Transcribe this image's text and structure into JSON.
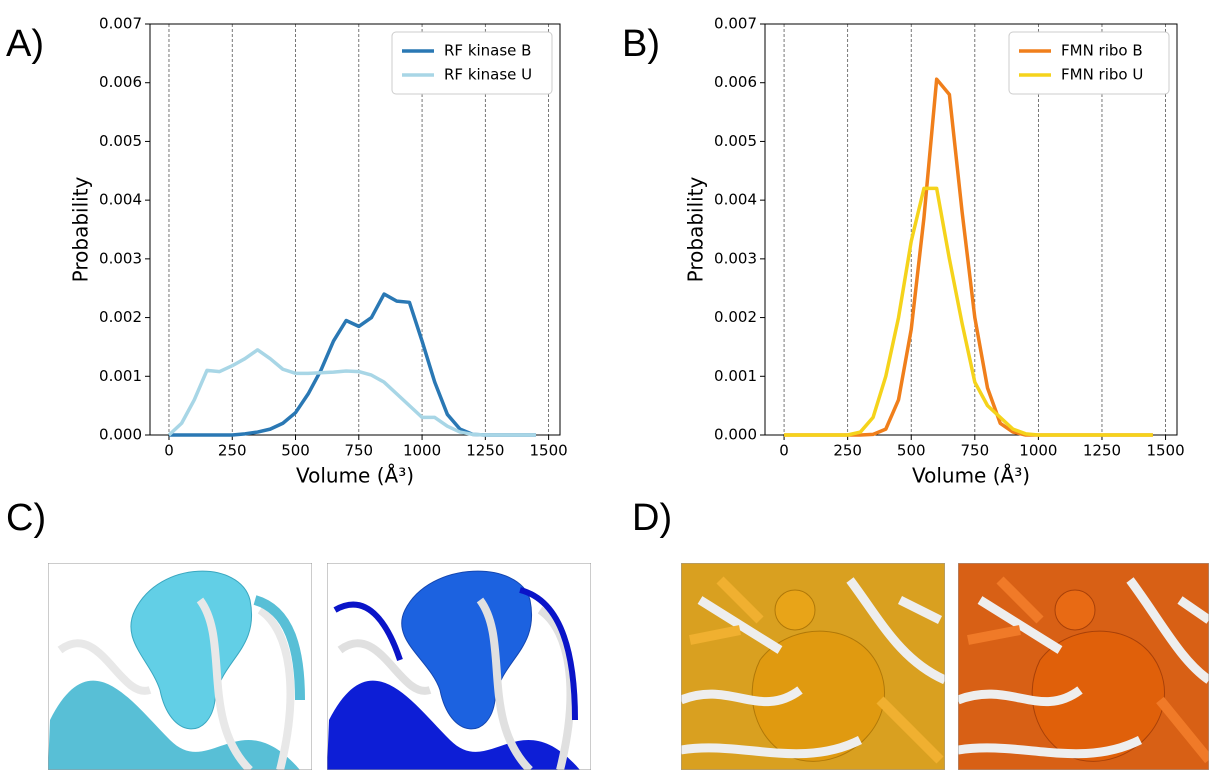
{
  "panel_labels": [
    "A)",
    "B)",
    "C)",
    "D)"
  ],
  "chart_data": [
    {
      "type": "line",
      "x_label": "Volume (Å³)",
      "y_label": "Probability",
      "x": [
        0,
        50,
        100,
        150,
        200,
        250,
        300,
        350,
        400,
        450,
        500,
        550,
        600,
        650,
        700,
        750,
        800,
        850,
        900,
        950,
        1000,
        1050,
        1100,
        1150,
        1200,
        1250,
        1300,
        1350,
        1400,
        1450
      ],
      "series": [
        {
          "name": "RF kinase B",
          "color": "#2a78b4",
          "values": [
            0,
            0,
            0,
            0,
            0,
            0,
            2e-05,
            5e-05,
            0.0001,
            0.0002,
            0.00038,
            0.0007,
            0.0011,
            0.0016,
            0.00195,
            0.00185,
            0.002,
            0.0024,
            0.00228,
            0.00226,
            0.0016,
            0.0009,
            0.00035,
            0.0001,
            1e-05,
            0,
            0,
            0,
            0,
            0
          ]
        },
        {
          "name": "RF kinase U",
          "color": "#a8d6e6",
          "values": [
            0,
            0.0002,
            0.0006,
            0.0011,
            0.00108,
            0.00118,
            0.0013,
            0.00145,
            0.0013,
            0.00112,
            0.00105,
            0.00105,
            0.00106,
            0.00107,
            0.00109,
            0.00108,
            0.00102,
            0.0009,
            0.0007,
            0.0005,
            0.0003,
            0.0003,
            0.00015,
            5e-05,
            1e-05,
            0,
            0,
            0,
            0,
            0
          ]
        }
      ],
      "xlim": [
        -75,
        1545
      ],
      "ylim": [
        0,
        0.007
      ],
      "xticks": [
        0,
        250,
        500,
        750,
        1000,
        1250,
        1500
      ],
      "yticks": [
        {
          "value": 0,
          "label": "0.000"
        },
        {
          "value": 0.001,
          "label": "0.001"
        },
        {
          "value": 0.002,
          "label": "0.002"
        },
        {
          "value": 0.003,
          "label": "0.003"
        },
        {
          "value": 0.004,
          "label": "0.004"
        },
        {
          "value": 0.005,
          "label": "0.005"
        },
        {
          "value": 0.006,
          "label": "0.006"
        },
        {
          "value": 0.007,
          "label": "0.007"
        }
      ],
      "grid": true,
      "legend": "upper right"
    },
    {
      "type": "line",
      "x_label": "Volume (Å³)",
      "y_label": "Probability",
      "x": [
        0,
        50,
        100,
        150,
        200,
        250,
        300,
        350,
        400,
        450,
        500,
        550,
        600,
        650,
        700,
        750,
        800,
        850,
        900,
        950,
        1000,
        1050,
        1100,
        1150,
        1200,
        1250,
        1300,
        1350,
        1400,
        1450
      ],
      "series": [
        {
          "name": "FMN ribo B",
          "color": "#f07f1b",
          "values": [
            0,
            0,
            0,
            0,
            0,
            0,
            0,
            1e-05,
            0.0001,
            0.0006,
            0.0018,
            0.0037,
            0.00606,
            0.0058,
            0.0038,
            0.002,
            0.0008,
            0.0002,
            5e-05,
            0,
            0,
            0,
            0,
            0,
            0,
            0,
            0,
            0,
            0,
            0
          ]
        },
        {
          "name": "FMN ribo U",
          "color": "#f5d31b",
          "values": [
            0,
            0,
            0,
            0,
            0,
            0,
            5e-05,
            0.0003,
            0.001,
            0.002,
            0.0033,
            0.0042,
            0.0042,
            0.003,
            0.0019,
            0.0009,
            0.0005,
            0.0003,
            0.0001,
            2e-05,
            0,
            0,
            0,
            0,
            0,
            0,
            0,
            0,
            0,
            0
          ]
        }
      ],
      "xlim": [
        -75,
        1545
      ],
      "ylim": [
        0,
        0.007
      ],
      "xticks": [
        0,
        250,
        500,
        750,
        1000,
        1250,
        1500
      ],
      "yticks": [
        {
          "value": 0,
          "label": "0.000"
        },
        {
          "value": 0.001,
          "label": "0.001"
        },
        {
          "value": 0.002,
          "label": "0.002"
        },
        {
          "value": 0.003,
          "label": "0.003"
        },
        {
          "value": 0.004,
          "label": "0.004"
        },
        {
          "value": 0.005,
          "label": "0.005"
        },
        {
          "value": 0.006,
          "label": "0.006"
        },
        {
          "value": 0.007,
          "label": "0.007"
        }
      ],
      "grid": true,
      "legend": "upper right"
    }
  ]
}
